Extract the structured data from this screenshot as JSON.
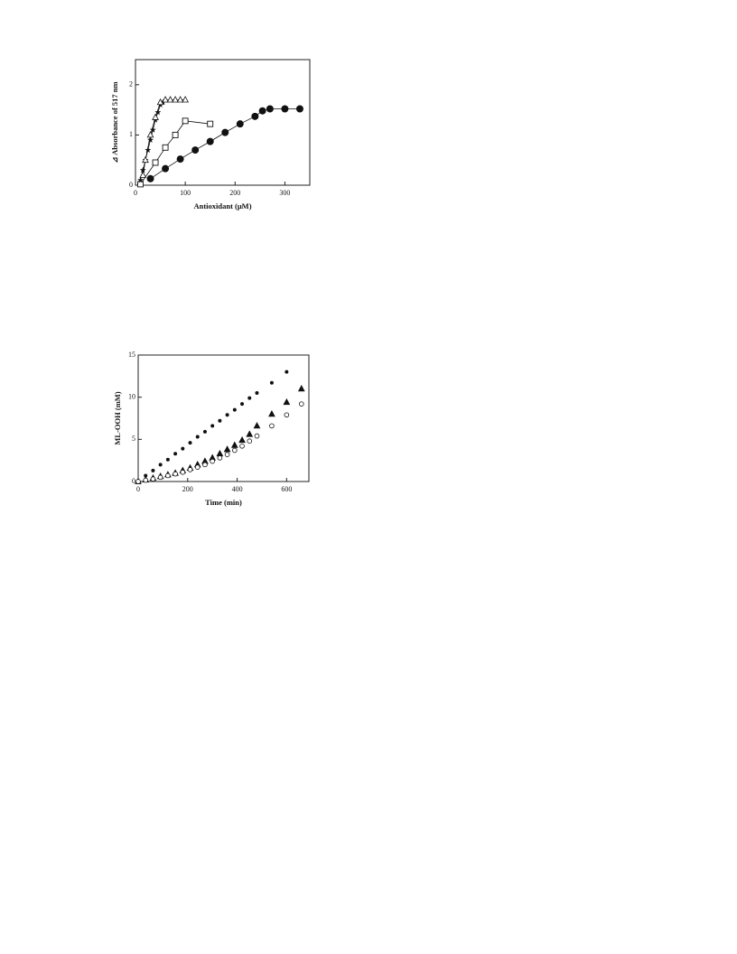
{
  "chart_data": [
    {
      "type": "scatter",
      "x_label": "Antioxidant (μM)",
      "y_label": "⊿ Absorbance of 517 nm",
      "xlim": [
        0,
        350
      ],
      "ylim": [
        0,
        2.5
      ],
      "xticks": [
        0,
        100,
        200,
        300
      ],
      "yticks": [
        0,
        1,
        2
      ],
      "lines": true,
      "series": [
        {
          "marker": "circle-filled",
          "color": "#111111",
          "x": [
            30,
            60,
            90,
            120,
            150,
            180,
            210,
            240,
            255,
            270,
            300,
            330
          ],
          "values": [
            0.13,
            0.33,
            0.52,
            0.7,
            0.87,
            1.05,
            1.22,
            1.37,
            1.48,
            1.52,
            1.52,
            1.52
          ]
        },
        {
          "marker": "square-open",
          "color": "#111111",
          "x": [
            10,
            40,
            60,
            80,
            100,
            150
          ],
          "values": [
            0.02,
            0.45,
            0.75,
            1.0,
            1.28,
            1.22
          ]
        },
        {
          "marker": "star",
          "color": "#111111",
          "x": [
            10,
            15,
            20,
            25,
            30,
            35,
            40,
            45,
            50,
            55
          ],
          "values": [
            0.1,
            0.3,
            0.5,
            0.7,
            0.9,
            1.1,
            1.3,
            1.45,
            1.6,
            1.65
          ]
        },
        {
          "marker": "triangle-open",
          "color": "#111111",
          "x": [
            15,
            20,
            30,
            40,
            50,
            60,
            70,
            80,
            90,
            100
          ],
          "values": [
            0.2,
            0.5,
            1.0,
            1.35,
            1.65,
            1.7,
            1.7,
            1.7,
            1.7,
            1.7
          ]
        }
      ]
    },
    {
      "type": "scatter",
      "x_label": "Time (min)",
      "y_label": "ML-OOH (mM)",
      "xlim": [
        0,
        690
      ],
      "ylim": [
        0,
        15
      ],
      "xticks": [
        0,
        200,
        400,
        600
      ],
      "yticks": [
        0,
        5,
        10,
        15
      ],
      "lines": false,
      "series": [
        {
          "marker": "dot",
          "color": "#111111",
          "x": [
            0,
            30,
            60,
            90,
            120,
            150,
            180,
            210,
            240,
            270,
            300,
            330,
            360,
            390,
            420,
            450,
            480,
            540,
            600
          ],
          "values": [
            0.1,
            0.7,
            1.3,
            2.0,
            2.6,
            3.3,
            3.9,
            4.6,
            5.3,
            5.9,
            6.6,
            7.2,
            7.9,
            8.5,
            9.2,
            9.9,
            10.5,
            11.7,
            13.0
          ]
        },
        {
          "marker": "triangle-filled",
          "color": "#111111",
          "x": [
            0,
            30,
            60,
            90,
            120,
            150,
            180,
            210,
            240,
            270,
            300,
            330,
            360,
            390,
            420,
            450,
            480,
            540,
            600,
            660
          ],
          "values": [
            0,
            0.2,
            0.4,
            0.6,
            0.8,
            1.0,
            1.3,
            1.6,
            2.0,
            2.4,
            2.8,
            3.3,
            3.8,
            4.3,
            4.9,
            5.6,
            6.6,
            8.0,
            9.4,
            11.0
          ]
        },
        {
          "marker": "circle-open",
          "color": "#111111",
          "x": [
            0,
            30,
            60,
            90,
            120,
            150,
            180,
            210,
            240,
            270,
            300,
            330,
            360,
            390,
            420,
            450,
            480,
            540,
            600,
            660
          ],
          "values": [
            0,
            0.15,
            0.3,
            0.5,
            0.7,
            0.9,
            1.1,
            1.4,
            1.7,
            2.0,
            2.4,
            2.8,
            3.2,
            3.7,
            4.2,
            4.8,
            5.4,
            6.6,
            7.9,
            9.2
          ]
        }
      ]
    }
  ]
}
